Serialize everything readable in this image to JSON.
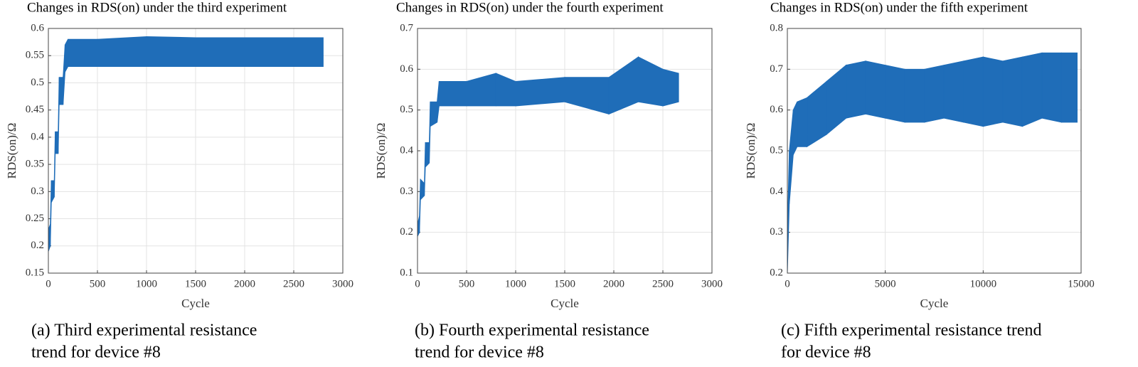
{
  "chart_data": [
    {
      "type": "band",
      "title": "Changes in RDS(on) under the third experiment",
      "caption": [
        "(a)  Third experimental resistance",
        "trend for device #8"
      ],
      "xlabel": "Cycle",
      "ylabel": "RDS(on)/Ω",
      "x": [
        0,
        20,
        30,
        60,
        70,
        100,
        110,
        150,
        170,
        200,
        500,
        1000,
        1500,
        2000,
        2500,
        2800
      ],
      "series": [
        {
          "color": "#1f6db8",
          "values": [
            0.19,
            0.2,
            0.28,
            0.29,
            0.37,
            0.37,
            0.46,
            0.46,
            0.52,
            0.53,
            0.53,
            0.53,
            0.53,
            0.53,
            0.53,
            0.53
          ]
        },
        {
          "color": "#1f6db8",
          "values": [
            0.23,
            0.24,
            0.32,
            0.32,
            0.41,
            0.41,
            0.51,
            0.51,
            0.57,
            0.58,
            0.58,
            0.585,
            0.583,
            0.583,
            0.583,
            0.583
          ]
        }
      ],
      "xlim": [
        0,
        3000
      ],
      "ylim": [
        0.15,
        0.6
      ],
      "xticks": [
        0,
        500,
        1000,
        1500,
        2000,
        2500,
        3000
      ],
      "yticks": [
        0.15,
        0.2,
        0.25,
        0.3,
        0.35,
        0.4,
        0.45,
        0.5,
        0.55,
        0.6
      ],
      "grid": true
    },
    {
      "type": "band",
      "title": "Changes in RDS(on) under the fourth  experiment",
      "caption": [
        "(b) Fourth experimental resistance",
        "trend for device #8"
      ],
      "xlabel": "Cycle",
      "ylabel": "RDS(on)/Ω",
      "x": [
        0,
        20,
        30,
        70,
        80,
        120,
        130,
        200,
        220,
        500,
        800,
        1000,
        1500,
        1950,
        2250,
        2500,
        2660
      ],
      "series": [
        {
          "color": "#1f6db8",
          "values": [
            0.19,
            0.2,
            0.28,
            0.29,
            0.36,
            0.37,
            0.46,
            0.47,
            0.51,
            0.51,
            0.51,
            0.51,
            0.52,
            0.49,
            0.52,
            0.51,
            0.52
          ]
        },
        {
          "color": "#1f6db8",
          "values": [
            0.22,
            0.24,
            0.33,
            0.32,
            0.42,
            0.42,
            0.52,
            0.52,
            0.57,
            0.57,
            0.59,
            0.57,
            0.58,
            0.58,
            0.63,
            0.6,
            0.59
          ]
        }
      ],
      "xlim": [
        0,
        3000
      ],
      "ylim": [
        0.1,
        0.7
      ],
      "xticks": [
        0,
        500,
        1000,
        1500,
        2000,
        2500,
        3000
      ],
      "yticks": [
        0.1,
        0.2,
        0.3,
        0.4,
        0.5,
        0.6,
        0.7
      ],
      "grid": true
    },
    {
      "type": "band",
      "title": "Changes in RDS(on) under the fifth experiment",
      "caption": [
        "(c)  Fifth experimental resistance trend",
        "for device #8"
      ],
      "xlabel": "Cycle",
      "ylabel": "RDS(on)/Ω",
      "x": [
        0,
        100,
        300,
        500,
        1000,
        2000,
        3000,
        4000,
        5000,
        6000,
        7000,
        8000,
        9000,
        10000,
        11000,
        12000,
        13000,
        14000,
        14800
      ],
      "series": [
        {
          "color": "#1f6db8",
          "values": [
            0.2,
            0.37,
            0.49,
            0.51,
            0.51,
            0.54,
            0.58,
            0.59,
            0.58,
            0.57,
            0.57,
            0.58,
            0.57,
            0.56,
            0.57,
            0.56,
            0.58,
            0.57,
            0.57
          ]
        },
        {
          "color": "#1f6db8",
          "values": [
            0.3,
            0.5,
            0.6,
            0.62,
            0.63,
            0.67,
            0.71,
            0.72,
            0.71,
            0.7,
            0.7,
            0.71,
            0.72,
            0.73,
            0.72,
            0.73,
            0.74,
            0.74,
            0.74
          ]
        }
      ],
      "xlim": [
        0,
        15000
      ],
      "ylim": [
        0.2,
        0.8
      ],
      "xticks": [
        0,
        5000,
        10000,
        15000
      ],
      "yticks": [
        0.2,
        0.3,
        0.4,
        0.5,
        0.6,
        0.7,
        0.8
      ],
      "grid": true
    }
  ]
}
